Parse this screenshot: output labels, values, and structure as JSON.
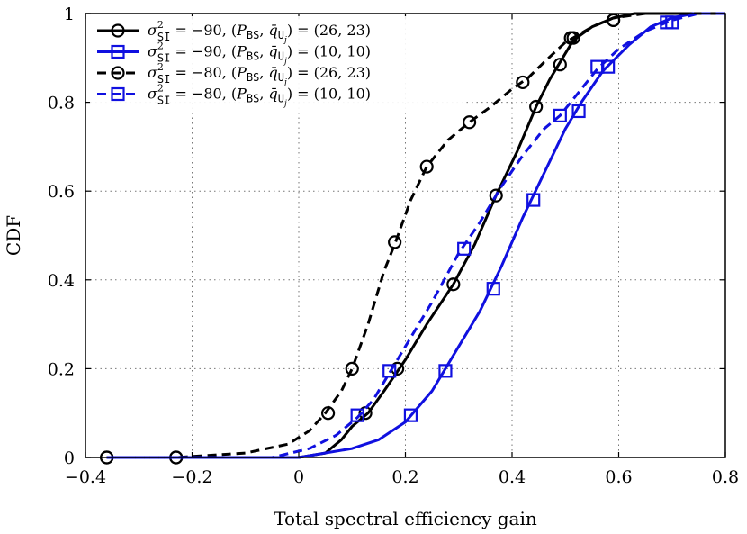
{
  "chart_data": {
    "type": "line",
    "title": "",
    "xlabel": "Total spectral efficiency gain",
    "ylabel": "CDF",
    "xlim": [
      -0.4,
      0.8
    ],
    "ylim": [
      0,
      1
    ],
    "xticks": [
      -0.4,
      -0.2,
      0,
      0.2,
      0.4,
      0.6,
      0.8
    ],
    "yticks": [
      0,
      0.2,
      0.4,
      0.6,
      0.8,
      1
    ],
    "xtick_labels": [
      "−0.4",
      "−0.2",
      "0",
      "0.2",
      "0.4",
      "0.6",
      "0.8"
    ],
    "ytick_labels": [
      "0",
      "0.2",
      "0.4",
      "0.6",
      "0.8",
      "1"
    ],
    "grid": true,
    "legend_position": "top-left",
    "series": [
      {
        "name": "σ²SI = −90, (PBS, q̄Uj) = (26, 23)",
        "legend": {
          "var": "σ",
          "sup": "2",
          "sub": "SI",
          "eq": " = −90, (",
          "p": "P",
          "psub": "BS",
          "q": "q̄",
          "qsub": "U",
          "qsubsub": "j",
          "tail": ") = (26, 23)"
        },
        "color": "#000000",
        "style": "solid",
        "marker": "circle",
        "x": [
          -0.36,
          -0.23,
          -0.1,
          0.0,
          0.05,
          0.08,
          0.1,
          0.13,
          0.16,
          0.2,
          0.24,
          0.29,
          0.33,
          0.37,
          0.41,
          0.445,
          0.47,
          0.49,
          0.515,
          0.55,
          0.59,
          0.63,
          0.68,
          0.72,
          0.8
        ],
        "y": [
          0.0,
          0.0,
          0.0,
          0.0,
          0.01,
          0.04,
          0.07,
          0.1,
          0.15,
          0.22,
          0.3,
          0.39,
          0.48,
          0.59,
          0.69,
          0.79,
          0.85,
          0.89,
          0.94,
          0.97,
          0.99,
          1.0,
          1.0,
          1.0,
          1.0
        ],
        "markers_x": [
          -0.36,
          -0.23,
          0.125,
          0.185,
          0.29,
          0.37,
          0.445,
          0.49,
          0.515,
          0.59
        ],
        "markers_y": [
          0.0,
          0.0,
          0.1,
          0.2,
          0.39,
          0.59,
          0.79,
          0.885,
          0.945,
          0.985
        ]
      },
      {
        "name": "σ²SI = −90, (PBS, q̄Uj) = (10, 10)",
        "legend": {
          "var": "σ",
          "sup": "2",
          "sub": "SI",
          "eq": " = −90, (",
          "p": "P",
          "psub": "BS",
          "q": "q̄",
          "qsub": "U",
          "qsubsub": "j",
          "tail": ") = (10, 10)"
        },
        "color": "#1010e0",
        "style": "solid",
        "marker": "square",
        "x": [
          -0.36,
          -0.2,
          0.0,
          0.1,
          0.15,
          0.2,
          0.25,
          0.3,
          0.34,
          0.38,
          0.42,
          0.46,
          0.5,
          0.53,
          0.57,
          0.62,
          0.66,
          0.7,
          0.74,
          0.8
        ],
        "y": [
          0.0,
          0.0,
          0.0,
          0.02,
          0.04,
          0.08,
          0.15,
          0.25,
          0.33,
          0.43,
          0.54,
          0.64,
          0.74,
          0.8,
          0.87,
          0.93,
          0.97,
          0.99,
          1.0,
          1.0
        ],
        "markers_x": [
          0.21,
          0.275,
          0.365,
          0.44,
          0.525,
          0.58,
          0.7
        ],
        "markers_y": [
          0.095,
          0.195,
          0.38,
          0.58,
          0.78,
          0.88,
          0.98
        ]
      },
      {
        "name": "σ²SI = −80, (PBS, q̄Uj) = (26, 23)",
        "legend": {
          "var": "σ",
          "sup": "2",
          "sub": "SI",
          "eq": " = −80, (",
          "p": "P",
          "psub": "BS",
          "q": "q̄",
          "qsub": "U",
          "qsubsub": "j",
          "tail": ") = (26, 23)"
        },
        "color": "#000000",
        "style": "dashed",
        "marker": "circle",
        "x": [
          -0.36,
          -0.23,
          -0.1,
          -0.02,
          0.02,
          0.05,
          0.08,
          0.1,
          0.13,
          0.16,
          0.18,
          0.21,
          0.24,
          0.28,
          0.32,
          0.36,
          0.4,
          0.43,
          0.46,
          0.5,
          0.55,
          0.59,
          0.65,
          0.7,
          0.8
        ],
        "y": [
          0.0,
          0.0,
          0.01,
          0.03,
          0.06,
          0.1,
          0.15,
          0.2,
          0.3,
          0.42,
          0.48,
          0.58,
          0.655,
          0.715,
          0.755,
          0.79,
          0.83,
          0.855,
          0.89,
          0.935,
          0.97,
          0.99,
          1.0,
          1.0,
          1.0
        ],
        "markers_x": [
          -0.36,
          -0.23,
          0.055,
          0.1,
          0.18,
          0.24,
          0.32,
          0.42,
          0.51,
          0.59
        ],
        "markers_y": [
          0.0,
          0.0,
          0.1,
          0.2,
          0.485,
          0.655,
          0.755,
          0.845,
          0.945,
          0.985
        ]
      },
      {
        "name": "σ²SI = −80, (PBS, q̄Uj) = (10, 10)",
        "legend": {
          "var": "σ",
          "sup": "2",
          "sub": "SI",
          "eq": " = −80, (",
          "p": "P",
          "psub": "BS",
          "q": "q̄",
          "qsub": "U",
          "qsubsub": "j",
          "tail": ") = (10, 10)"
        },
        "color": "#1010e0",
        "style": "dashed",
        "marker": "square",
        "x": [
          -0.36,
          -0.2,
          -0.05,
          0.02,
          0.07,
          0.11,
          0.14,
          0.17,
          0.21,
          0.25,
          0.3,
          0.34,
          0.38,
          0.42,
          0.46,
          0.49,
          0.53,
          0.56,
          0.6,
          0.65,
          0.7,
          0.75,
          0.8
        ],
        "y": [
          0.0,
          0.0,
          0.0,
          0.02,
          0.05,
          0.09,
          0.13,
          0.19,
          0.27,
          0.35,
          0.46,
          0.53,
          0.61,
          0.68,
          0.74,
          0.77,
          0.83,
          0.875,
          0.92,
          0.96,
          0.985,
          1.0,
          1.0
        ],
        "markers_x": [
          0.11,
          0.17,
          0.31,
          0.49,
          0.56,
          0.69
        ],
        "markers_y": [
          0.095,
          0.195,
          0.47,
          0.77,
          0.88,
          0.98
        ]
      }
    ]
  }
}
